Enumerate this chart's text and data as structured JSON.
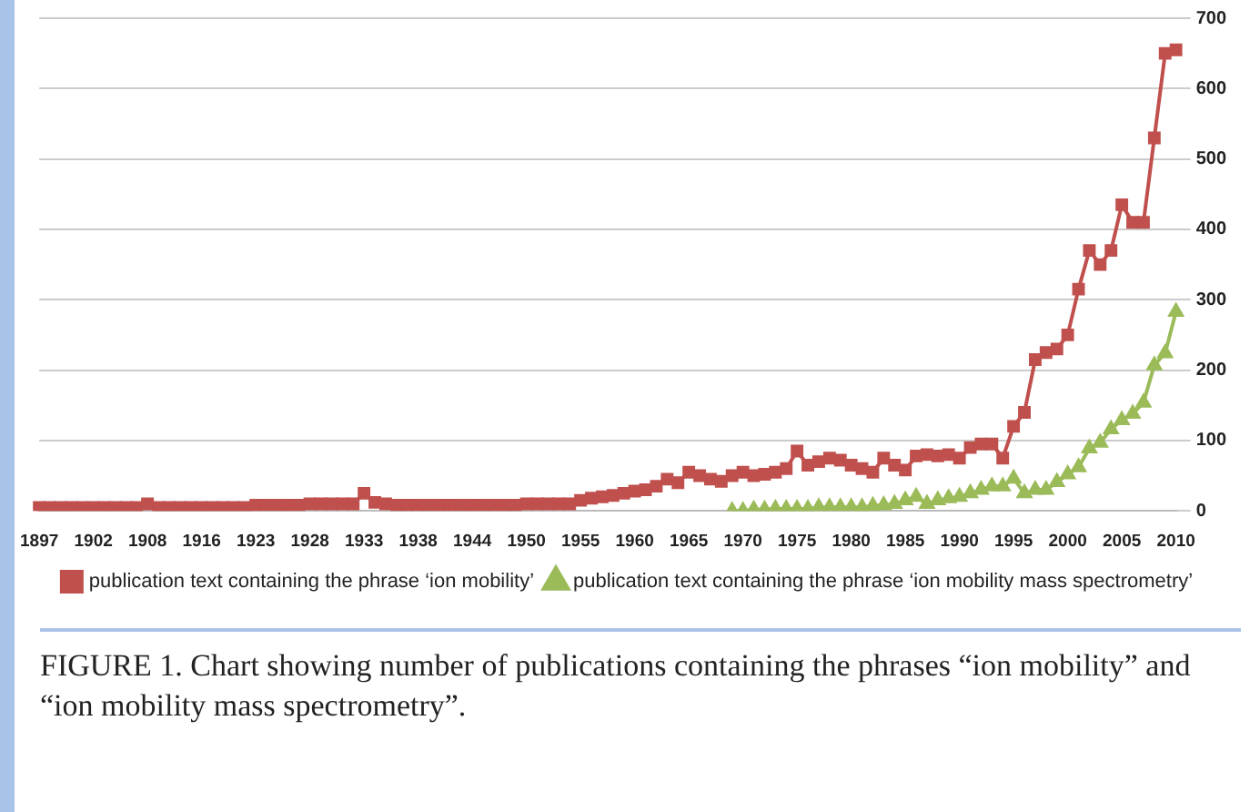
{
  "chart_data": {
    "type": "line",
    "categories": [
      "1897",
      null,
      null,
      null,
      null,
      "1902",
      null,
      null,
      null,
      null,
      "1908",
      null,
      null,
      null,
      null,
      "1916",
      null,
      null,
      null,
      null,
      "1923",
      null,
      null,
      null,
      null,
      "1928",
      null,
      null,
      null,
      null,
      "1933",
      null,
      null,
      null,
      null,
      "1938",
      null,
      null,
      null,
      null,
      "1944",
      null,
      null,
      null,
      null,
      "1950",
      null,
      null,
      null,
      null,
      "1955",
      null,
      null,
      null,
      null,
      "1960",
      null,
      null,
      null,
      null,
      "1965",
      null,
      null,
      null,
      null,
      "1970",
      null,
      null,
      null,
      null,
      "1975",
      null,
      null,
      null,
      null,
      "1980",
      null,
      null,
      null,
      null,
      "1985",
      null,
      null,
      null,
      null,
      "1990",
      null,
      null,
      null,
      null,
      "1995",
      null,
      null,
      null,
      null,
      "2000",
      null,
      null,
      null,
      null,
      "2005",
      null,
      null,
      null,
      null,
      "2010"
    ],
    "series": [
      {
        "name": "publication text containing the phrase ‘ion mobility’",
        "color": "#c0504d",
        "marker": "square",
        "values": [
          5,
          5,
          5,
          5,
          5,
          5,
          5,
          5,
          5,
          5,
          10,
          5,
          5,
          5,
          5,
          5,
          5,
          5,
          5,
          5,
          8,
          8,
          8,
          8,
          8,
          10,
          10,
          10,
          10,
          10,
          25,
          12,
          10,
          8,
          8,
          8,
          8,
          8,
          8,
          8,
          8,
          8,
          8,
          8,
          8,
          10,
          10,
          10,
          10,
          10,
          15,
          18,
          20,
          22,
          25,
          28,
          30,
          35,
          45,
          40,
          55,
          50,
          45,
          42,
          50,
          55,
          50,
          52,
          55,
          60,
          85,
          65,
          70,
          75,
          72,
          65,
          60,
          55,
          75,
          65,
          58,
          78,
          80,
          78,
          80,
          75,
          90,
          95,
          95,
          75,
          120,
          140,
          215,
          225,
          230,
          250,
          315,
          370,
          350,
          370,
          435,
          410,
          410,
          530,
          650,
          655
        ]
      },
      {
        "name": "publication text containing the phrase ‘ion mobility mass spectrometry’",
        "color": "#9bbb59",
        "marker": "triangle",
        "values": [
          null,
          null,
          null,
          null,
          null,
          null,
          null,
          null,
          null,
          null,
          null,
          null,
          null,
          null,
          null,
          null,
          null,
          null,
          null,
          null,
          null,
          null,
          null,
          null,
          null,
          null,
          null,
          null,
          null,
          null,
          null,
          null,
          null,
          null,
          null,
          null,
          null,
          null,
          null,
          null,
          null,
          null,
          null,
          null,
          null,
          null,
          null,
          null,
          null,
          null,
          null,
          null,
          null,
          null,
          null,
          null,
          null,
          null,
          null,
          null,
          null,
          null,
          null,
          null,
          0,
          0,
          2,
          2,
          3,
          3,
          3,
          3,
          5,
          5,
          5,
          5,
          5,
          7,
          8,
          10,
          15,
          20,
          10,
          15,
          18,
          20,
          25,
          30,
          35,
          35,
          46,
          25,
          30,
          30,
          41,
          52,
          62,
          89,
          97,
          116,
          129,
          138,
          154,
          207,
          224,
          283
        ]
      }
    ],
    "ylim": [
      0,
      700
    ],
    "yticks": [
      0,
      100,
      200,
      300,
      400,
      500,
      600,
      700
    ],
    "grid": "y",
    "legend": "bottom",
    "annotations": [
      "FIGURE 1. Chart showing number of publications containing the phrases “ion mobility” and “ion mobility mass spectrometry”."
    ]
  }
}
